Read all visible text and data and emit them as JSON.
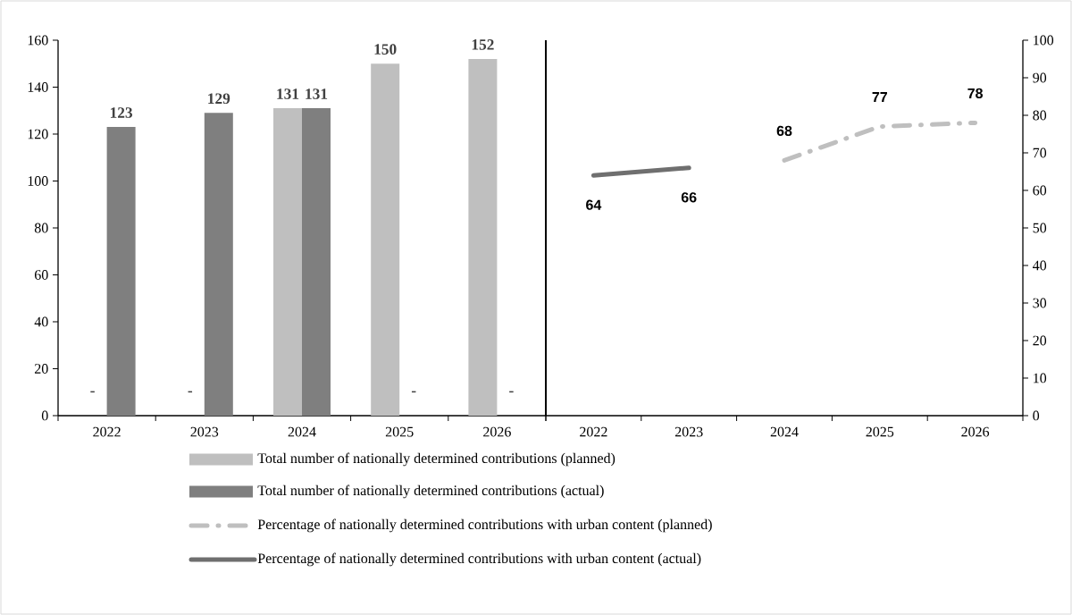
{
  "chart_data": [
    {
      "type": "bar",
      "categories": [
        "2022",
        "2023",
        "2024",
        "2025",
        "2026"
      ],
      "ylim": [
        0,
        160
      ],
      "yticks": [
        0,
        20,
        40,
        60,
        80,
        100,
        120,
        140,
        160
      ],
      "legend": "bottom",
      "series": [
        {
          "name": "Total number of nationally determined contributions (planned)",
          "color": "#bfbfbf",
          "values": [
            null,
            null,
            131,
            150,
            152
          ],
          "value_labels": [
            "-",
            "-",
            "131",
            "150",
            "152"
          ]
        },
        {
          "name": "Total number of nationally determined contributions (actual)",
          "color": "#7f7f7f",
          "values": [
            123,
            129,
            131,
            null,
            null
          ],
          "value_labels": [
            "123",
            "129",
            "131",
            "-",
            "-"
          ]
        }
      ]
    },
    {
      "type": "line",
      "categories": [
        "2022",
        "2023",
        "2024",
        "2025",
        "2026"
      ],
      "y2lim": [
        0,
        100
      ],
      "y2ticks": [
        0,
        10,
        20,
        30,
        40,
        50,
        60,
        70,
        80,
        90,
        100
      ],
      "legend": "bottom",
      "data_labels": true,
      "series": [
        {
          "name": "Percentage of nationally determined contributions with urban content (planned)",
          "color": "#bfbfbf",
          "values": [
            null,
            null,
            68,
            77,
            78
          ],
          "axis": "y2",
          "line_style": "dashed"
        },
        {
          "name": "Percentage of nationally determined contributions with urban content (actual)",
          "color": "#6f6f6f",
          "values": [
            64,
            66,
            null,
            null,
            null
          ],
          "axis": "y2",
          "line_style": "solid"
        }
      ]
    }
  ]
}
